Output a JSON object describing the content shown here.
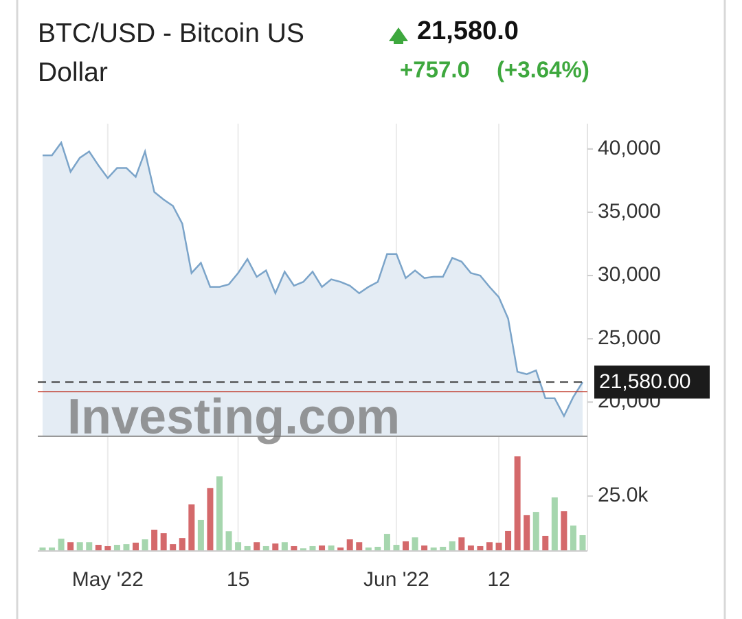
{
  "chart_data": {
    "type": "line",
    "title": "BTC/USD - Bitcoin US Dollar",
    "price": "21,580.0",
    "change": "+757.0",
    "change_percent": "(+3.64%)",
    "watermark": "Investing.com",
    "line_color": "#7ba4c9",
    "area_color": "#e4ecf4",
    "up_color": "#a6d6ae",
    "down_color": "#d4696b",
    "change_color": "#3ea83e",
    "reference_line": 20823,
    "last_price": {
      "value": 21580,
      "label": "21,580.00"
    },
    "x": [
      "2022-04-24",
      "2022-04-25",
      "2022-04-26",
      "2022-04-27",
      "2022-04-28",
      "2022-04-29",
      "2022-04-30",
      "2022-05-01",
      "2022-05-02",
      "2022-05-03",
      "2022-05-04",
      "2022-05-05",
      "2022-05-06",
      "2022-05-07",
      "2022-05-08",
      "2022-05-09",
      "2022-05-10",
      "2022-05-11",
      "2022-05-12",
      "2022-05-13",
      "2022-05-14",
      "2022-05-15",
      "2022-05-16",
      "2022-05-17",
      "2022-05-18",
      "2022-05-19",
      "2022-05-20",
      "2022-05-21",
      "2022-05-22",
      "2022-05-23",
      "2022-05-24",
      "2022-05-25",
      "2022-05-26",
      "2022-05-27",
      "2022-05-28",
      "2022-05-29",
      "2022-05-30",
      "2022-05-31",
      "2022-06-01",
      "2022-06-02",
      "2022-06-03",
      "2022-06-04",
      "2022-06-05",
      "2022-06-06",
      "2022-06-07",
      "2022-06-08",
      "2022-06-09",
      "2022-06-10",
      "2022-06-11",
      "2022-06-12",
      "2022-06-13",
      "2022-06-14",
      "2022-06-15",
      "2022-06-16",
      "2022-06-17",
      "2022-06-18",
      "2022-06-19",
      "2022-06-20",
      "2022-06-21"
    ],
    "values": [
      39500,
      39500,
      40500,
      38200,
      39300,
      39800,
      38700,
      37700,
      38500,
      38500,
      37800,
      39800,
      36600,
      36000,
      35500,
      34100,
      30200,
      31000,
      29100,
      29100,
      29300,
      30200,
      31300,
      29900,
      30400,
      28600,
      30300,
      29200,
      29500,
      30300,
      29100,
      29700,
      29500,
      29200,
      28600,
      29100,
      29500,
      31700,
      31700,
      29800,
      30400,
      29800,
      29900,
      29900,
      31400,
      31100,
      30200,
      30000,
      29100,
      28300,
      26600,
      22400,
      22200,
      22500,
      20300,
      20300,
      18900,
      20400,
      21580
    ],
    "xlim": [
      "2022-04-24",
      "2022-06-21"
    ],
    "ylim": [
      17300,
      42000
    ],
    "yticks": [
      {
        "value": 20000,
        "label": "20,000"
      },
      {
        "value": 25000,
        "label": "25,000"
      },
      {
        "value": 30000,
        "label": "30,000"
      },
      {
        "value": 35000,
        "label": "35,000"
      },
      {
        "value": 40000,
        "label": "40,000"
      }
    ],
    "xticks": [
      {
        "value": "2022-05-01",
        "label": "May '22"
      },
      {
        "value": "2022-05-15",
        "label": "15"
      },
      {
        "value": "2022-06-01",
        "label": "Jun '22"
      },
      {
        "value": "2022-06-12",
        "label": "12"
      }
    ],
    "volume": {
      "values": [
        1600,
        1600,
        5600,
        4000,
        4000,
        4000,
        2800,
        2200,
        2800,
        3100,
        3800,
        5300,
        9700,
        8100,
        3100,
        5900,
        21200,
        14100,
        28700,
        34000,
        9000,
        4000,
        2200,
        4000,
        2200,
        3400,
        4000,
        2200,
        1200,
        2200,
        2500,
        2500,
        1600,
        5300,
        4000,
        1600,
        1900,
        7800,
        2800,
        4400,
        6200,
        2500,
        1600,
        1900,
        4400,
        6200,
        2500,
        2200,
        4000,
        3800,
        9100,
        43100,
        16300,
        17800,
        6900,
        24400,
        18100,
        11600,
        7200
      ],
      "ylim": [
        0,
        46000
      ],
      "yticks": [
        {
          "value": 25000,
          "label": "25.0k"
        }
      ]
    }
  }
}
